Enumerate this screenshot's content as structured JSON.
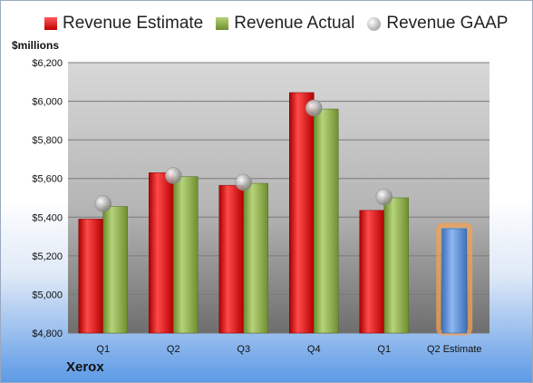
{
  "chart_data": {
    "type": "bar",
    "categories": [
      "Q1",
      "Q2",
      "Q3",
      "Q4",
      "Q1",
      "Q2 Estimate"
    ],
    "series": [
      {
        "name": "Revenue Estimate",
        "values": [
          5390,
          5630,
          5565,
          6045,
          5435,
          null
        ],
        "color": "#d42020"
      },
      {
        "name": "Revenue Actual",
        "values": [
          5455,
          5610,
          5575,
          5960,
          5500,
          null
        ],
        "color": "#8cae46"
      },
      {
        "name": "Revenue GAAP",
        "values": [
          5470,
          5615,
          5580,
          5965,
          5505,
          null
        ],
        "color": "#c0c0c0",
        "marker": "sphere"
      },
      {
        "name": "",
        "values": [
          null,
          null,
          null,
          null,
          null,
          5340
        ],
        "color": "#5b8fd6",
        "highlight": "#f5a050"
      }
    ],
    "ylim": [
      4800,
      6200
    ],
    "yticks": [
      "$4,800",
      "$5,000",
      "$5,200",
      "$5,400",
      "$5,600",
      "$5,800",
      "$6,000",
      "$6,200"
    ],
    "ytick_values": [
      4800,
      5000,
      5200,
      5400,
      5600,
      5800,
      6000,
      6200
    ],
    "ylabel": "$millions",
    "grid": true,
    "legend_placement": "top"
  },
  "legend": {
    "estimate": "Revenue Estimate",
    "actual": "Revenue Actual",
    "gaap": "Revenue GAAP"
  },
  "company": "Xerox"
}
